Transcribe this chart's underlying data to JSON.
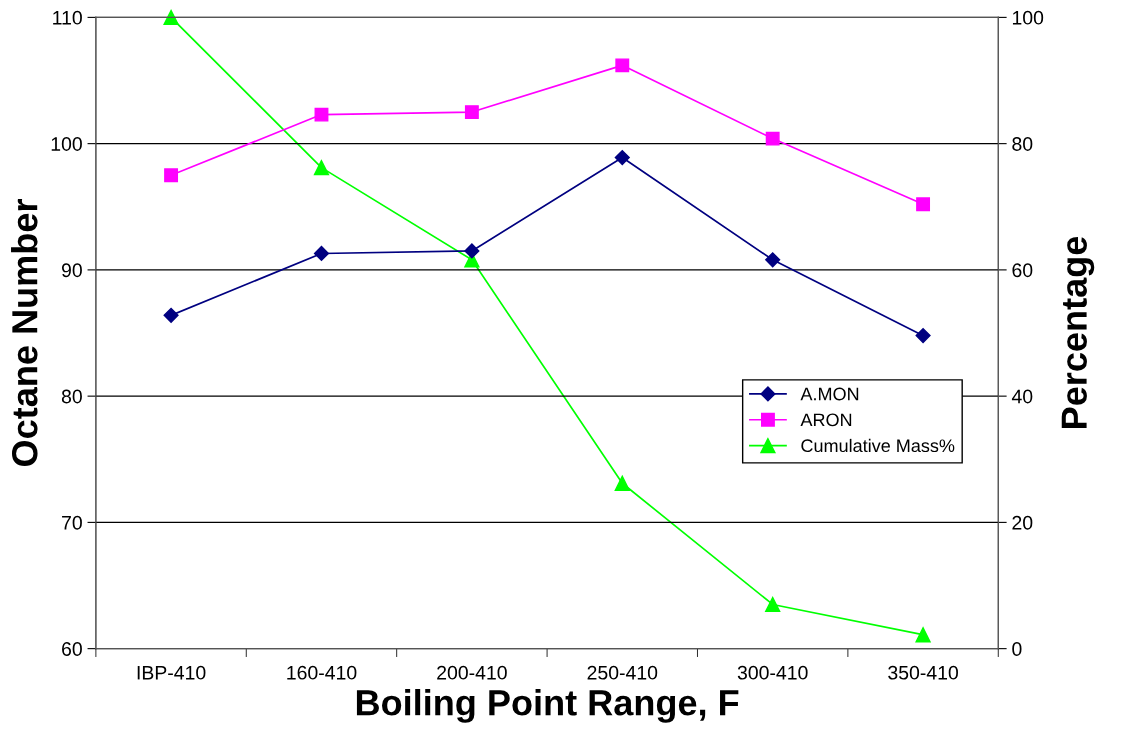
{
  "chart_data": {
    "type": "line",
    "xlabel": "Boiling Point Range, F",
    "ylabel": "Octane Number",
    "y2label": "Percentage",
    "categories": [
      "IBP-410",
      "160-410",
      "200-410",
      "250-410",
      "300-410",
      "350-410"
    ],
    "series": [
      {
        "name": "A.MON",
        "color": "#000080",
        "marker": "diamond",
        "values": [
          86.4,
          91.3,
          91.5,
          98.9,
          90.8,
          84.8
        ]
      },
      {
        "name": "ARON",
        "color": "#ff00ff",
        "marker": "square",
        "values": [
          97.5,
          102.3,
          102.5,
          106.2,
          100.4,
          95.2
        ]
      },
      {
        "name": "Cumulative Mass%",
        "color": "#00ff00",
        "marker": "triangle",
        "axis": "y2",
        "values": [
          100,
          76.2,
          61.6,
          26.2,
          7.0,
          2.2
        ]
      }
    ],
    "ylim": [
      60,
      110
    ],
    "yticks": [
      60,
      70,
      80,
      90,
      100,
      110
    ],
    "y2lim": [
      0,
      100
    ],
    "y2ticks": [
      0,
      20,
      40,
      60,
      80,
      100
    ],
    "grid": "y",
    "legend": "right"
  }
}
